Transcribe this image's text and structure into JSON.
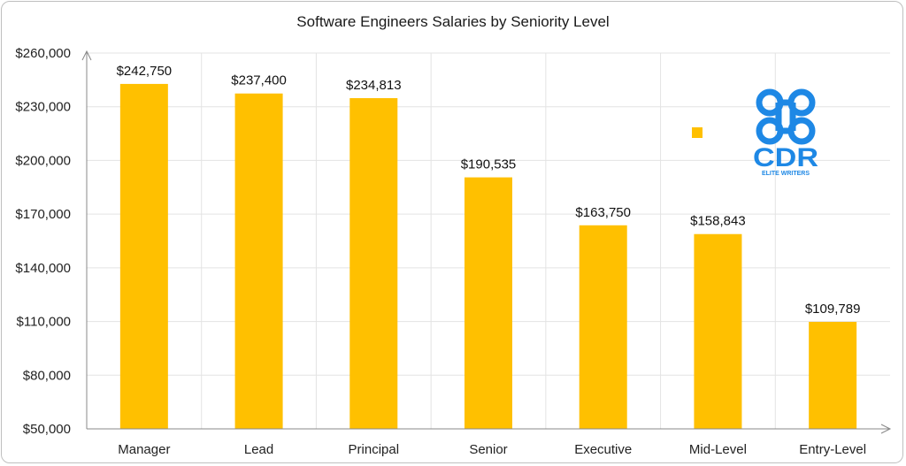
{
  "chart_data": {
    "type": "bar",
    "title": "Software Engineers Salaries by Seniority Level",
    "categories": [
      "Manager",
      "Lead",
      "Principal",
      "Senior",
      "Executive",
      "Mid-Level",
      "Entry-Level"
    ],
    "values": [
      242750,
      237400,
      234813,
      190535,
      163750,
      158843,
      109789
    ],
    "value_labels": [
      "$242,750",
      "$237,400",
      "$234,813",
      "$190,535",
      "$163,750",
      "$158,843",
      "$109,789"
    ],
    "y_ticks": [
      50000,
      80000,
      110000,
      140000,
      170000,
      200000,
      230000,
      260000
    ],
    "y_tick_labels": [
      "$50,000",
      "$80,000",
      "$110,000",
      "$140,000",
      "$170,000",
      "$200,000",
      "$230,000",
      "$260,000"
    ],
    "ylim": [
      50000,
      260000
    ],
    "grid": true,
    "bar_color": "#FFC000",
    "legend_placement": "top-right",
    "xlabel": "",
    "ylabel": ""
  },
  "logo": {
    "name": "CDR",
    "tagline": "ELITE WRITERS",
    "icon": "command-key-icon",
    "color": "#1E88E5"
  }
}
